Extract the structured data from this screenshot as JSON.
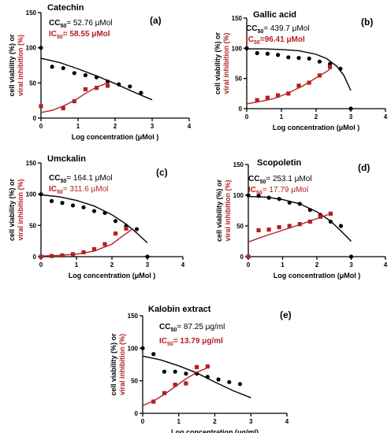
{
  "chart_data": [
    {
      "type": "scatter",
      "id": "a",
      "panel_label": "(a)",
      "compound": "Catechin",
      "cc50_label": "CC",
      "cc50_sub": "50",
      "cc50_value": "= 52.76 μMol",
      "ic50_label": "IC",
      "ic50_sub": "50",
      "ic50_value": "= 58.55 μMol",
      "ylabel": [
        "cell viability (%) or",
        "viral inhibition (%)"
      ],
      "xlabel": "Log concentration (μMol )",
      "xlim": [
        0,
        4
      ],
      "ylim": [
        0,
        150
      ],
      "xticks": [
        0,
        1,
        2,
        3,
        4
      ],
      "yticks": [
        0,
        50,
        100,
        150
      ],
      "series": [
        {
          "name": "cell viability (%)",
          "color": "#000000",
          "marker": "circle",
          "x": [
            0,
            0.3,
            0.6,
            0.9,
            1.2,
            1.5,
            1.8,
            2.1,
            2.4,
            2.7
          ],
          "y": [
            100,
            73,
            71,
            64,
            61,
            58,
            52,
            48,
            45,
            36
          ],
          "fit_x": [
            0,
            0.5,
            1,
            1.5,
            2,
            2.5,
            3
          ],
          "fit_y": [
            85,
            79,
            70,
            60,
            49,
            37,
            26
          ]
        },
        {
          "name": "viral inhibition (%)",
          "color": "#b22222",
          "marker": "square",
          "x": [
            0,
            0.6,
            0.9,
            1.2,
            1.5,
            1.8
          ],
          "y": [
            17,
            14,
            24,
            41,
            43,
            46
          ],
          "fit_x": [
            0,
            0.3,
            0.6,
            0.9,
            1.2,
            1.5,
            1.8
          ],
          "fit_y": [
            8,
            11,
            17,
            25,
            35,
            44,
            50
          ]
        }
      ]
    },
    {
      "type": "scatter",
      "id": "b",
      "panel_label": "(b)",
      "compound": "Gallic acid",
      "cc50_label": "CC",
      "cc50_sub": "50",
      "cc50_value": "= 439.7 μMol",
      "ic50_label": "IC",
      "ic50_sub": "50",
      "ic50_value": "=96.41 μMol",
      "ylabel": [
        "cell viability (%) or",
        "viral inhibition (%)"
      ],
      "xlabel": "Log concentration (μMol )",
      "xlim": [
        0,
        4
      ],
      "ylim": [
        0,
        150
      ],
      "xticks": [
        0,
        1,
        2,
        3,
        4
      ],
      "yticks": [
        0,
        50,
        100,
        150
      ],
      "series": [
        {
          "name": "cell viability (%)",
          "color": "#000000",
          "marker": "circle",
          "x": [
            0,
            0.3,
            0.6,
            0.9,
            1.2,
            1.5,
            1.8,
            2.1,
            2.4,
            2.7,
            3.0
          ],
          "y": [
            100,
            92,
            91,
            89,
            85,
            84,
            83,
            78,
            74,
            66,
            0
          ],
          "fit_x": [
            0,
            0.5,
            1,
            1.5,
            2,
            2.3,
            2.6,
            2.8,
            3.0
          ],
          "fit_y": [
            99,
            99,
            98,
            96,
            90,
            83,
            70,
            55,
            30
          ]
        },
        {
          "name": "viral inhibition (%)",
          "color": "#b22222",
          "marker": "square",
          "x": [
            0.3,
            0.6,
            0.9,
            1.2,
            1.5,
            1.8,
            2.1,
            2.4
          ],
          "y": [
            14,
            18,
            22,
            25,
            38,
            43,
            55,
            69
          ],
          "fit_x": [
            0,
            0.4,
            0.8,
            1.2,
            1.6,
            2.0,
            2.4
          ],
          "fit_y": [
            8,
            12,
            17,
            26,
            37,
            51,
            65
          ]
        }
      ]
    },
    {
      "type": "scatter",
      "id": "c",
      "panel_label": "(c)",
      "compound": "Umckalin",
      "cc50_label": "CC",
      "cc50_sub": "50",
      "cc50_value": "= 164.1 μMol",
      "ic50_label": "IC",
      "ic50_sub": "50",
      "ic50_value": "= 311.6 μMol",
      "ylabel": [
        "cell viability (%) or",
        "viral inhibition (%)"
      ],
      "xlabel": "Log concentration (μMol )",
      "xlim": [
        0,
        4
      ],
      "ylim": [
        0,
        150
      ],
      "xticks": [
        0,
        1,
        2,
        3,
        4
      ],
      "yticks": [
        0,
        50,
        100,
        150
      ],
      "series": [
        {
          "name": "cell viability (%)",
          "color": "#000000",
          "marker": "circle",
          "x": [
            0,
            0.3,
            0.6,
            0.9,
            1.2,
            1.5,
            1.8,
            2.1,
            2.4,
            2.7,
            3.0
          ],
          "y": [
            100,
            89,
            86,
            82,
            79,
            73,
            70,
            57,
            49,
            44,
            0
          ],
          "fit_x": [
            0,
            0.5,
            1,
            1.5,
            2,
            2.4,
            2.7,
            3.0
          ],
          "fit_y": [
            99,
            96,
            90,
            81,
            67,
            52,
            38,
            22
          ]
        },
        {
          "name": "viral inhibition (%)",
          "color": "#b22222",
          "marker": "square",
          "x": [
            0,
            0.3,
            0.6,
            0.9,
            1.2,
            1.5,
            1.8,
            2.1,
            2.4
          ],
          "y": [
            0,
            1,
            2,
            4,
            7,
            12,
            20,
            37,
            45
          ],
          "fit_x": [
            0,
            0.5,
            1,
            1.5,
            2,
            2.3,
            2.6
          ],
          "fit_y": [
            1,
            2,
            4,
            9,
            20,
            33,
            45
          ]
        }
      ]
    },
    {
      "type": "scatter",
      "id": "d",
      "panel_label": "(d)",
      "compound": "Scopoletin",
      "cc50_label": "CC",
      "cc50_sub": "50",
      "cc50_value": "= 253.1 μMol",
      "ic50_label": "IC",
      "ic50_sub": "50",
      "ic50_value": "= 17.79 μMol",
      "ylabel": [
        "cell viability (%) or",
        "viral inhibition (%)"
      ],
      "xlabel": "Log concentration (μMol )",
      "xlim": [
        0,
        4
      ],
      "ylim": [
        0,
        150
      ],
      "xticks": [
        0,
        1,
        2,
        3,
        4
      ],
      "yticks": [
        0,
        50,
        100,
        150
      ],
      "series": [
        {
          "name": "cell viability (%)",
          "color": "#000000",
          "marker": "circle",
          "x": [
            0,
            0.3,
            0.6,
            0.9,
            1.2,
            1.5,
            1.8,
            2.1,
            2.4,
            2.7,
            3.0
          ],
          "y": [
            100,
            99,
            96,
            94,
            88,
            86,
            76,
            68,
            57,
            50,
            0
          ],
          "fit_x": [
            0,
            0.5,
            1,
            1.5,
            2,
            2.4,
            2.7,
            3.0
          ],
          "fit_y": [
            98,
            97,
            93,
            86,
            73,
            58,
            42,
            25
          ]
        },
        {
          "name": "viral inhibition (%)",
          "color": "#b22222",
          "marker": "square",
          "x": [
            0,
            0.3,
            0.6,
            0.9,
            1.2,
            1.5,
            1.8,
            2.1,
            2.4
          ],
          "y": [
            0,
            43,
            44,
            48,
            50,
            53,
            57,
            65,
            70
          ],
          "fit_x": [
            0,
            0.5,
            1,
            1.5,
            2,
            2.4
          ],
          "fit_y": [
            24,
            34,
            43,
            52,
            62,
            70
          ]
        }
      ]
    },
    {
      "type": "scatter",
      "id": "e",
      "panel_label": "(e)",
      "compound": "Kalobin extract",
      "cc50_label": "CC",
      "cc50_sub": "50",
      "cc50_value": "= 87.25 μg/ml",
      "ic50_label": "IC",
      "ic50_sub": "50",
      "ic50_value": "= 13.79 μg/ml",
      "ylabel": [
        "cell viability (%) or",
        "viral inhibition (%)"
      ],
      "xlabel": "Log concentration (μg/ml)",
      "xlim": [
        0,
        4
      ],
      "ylim": [
        0,
        150
      ],
      "xticks": [
        0,
        1,
        2,
        3,
        4
      ],
      "yticks": [
        0,
        50,
        100,
        150
      ],
      "series": [
        {
          "name": "cell viability (%)",
          "color": "#000000",
          "marker": "circle",
          "x": [
            0,
            0.3,
            0.6,
            0.9,
            1.2,
            1.5,
            1.8,
            2.1,
            2.4,
            2.7
          ],
          "y": [
            100,
            91,
            64,
            64,
            61,
            61,
            56,
            52,
            48,
            45
          ],
          "fit_x": [
            0,
            0.5,
            1,
            1.5,
            2,
            2.5,
            3
          ],
          "fit_y": [
            88,
            82,
            73,
            62,
            48,
            35,
            24
          ]
        },
        {
          "name": "viral inhibition (%)",
          "color": "#b22222",
          "marker": "square",
          "x": [
            0.3,
            0.6,
            0.9,
            1.2,
            1.5,
            1.8
          ],
          "y": [
            18,
            31,
            44,
            46,
            71,
            72
          ],
          "fit_x": [
            0,
            0.3,
            0.6,
            0.9,
            1.2,
            1.5,
            1.8
          ],
          "fit_y": [
            12,
            19,
            29,
            41,
            53,
            63,
            70
          ]
        }
      ]
    }
  ]
}
